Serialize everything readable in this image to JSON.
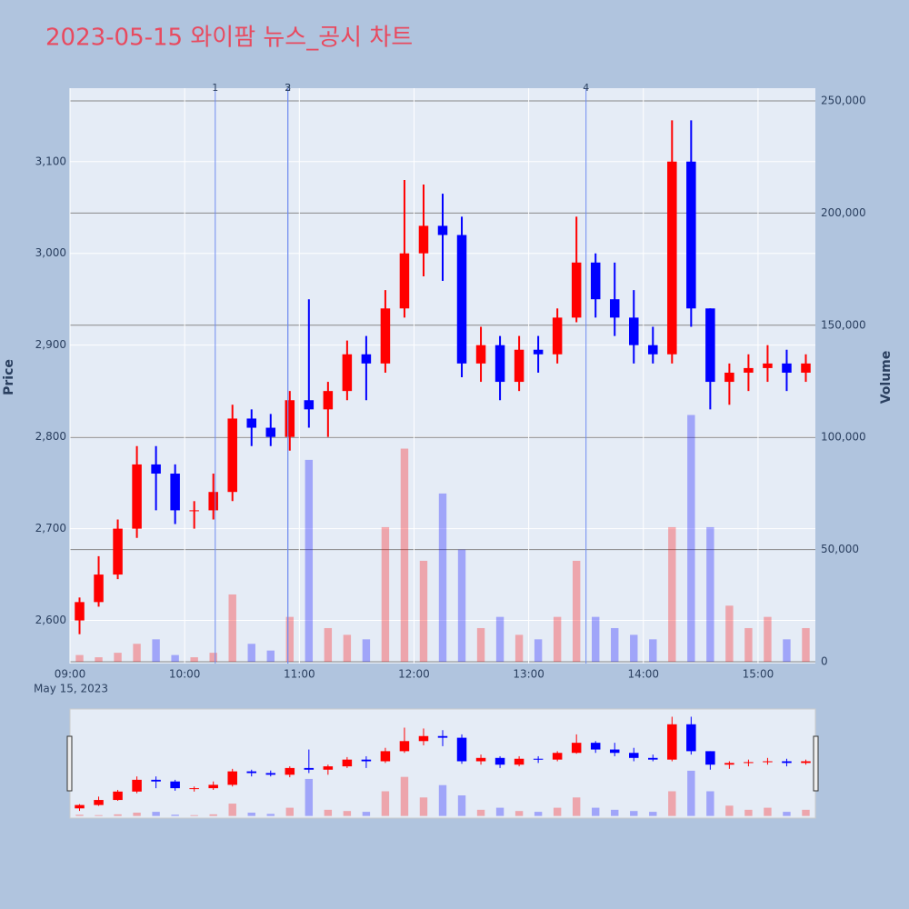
{
  "chart_data": {
    "type": "candlestick",
    "title": "2023-05-15 와이팜 뉴스_공시 차트",
    "date_label": "May 15, 2023",
    "y_title": "Price",
    "y2_title": "Volume",
    "increasing_color": "#ff0000",
    "decreasing_color": "#0000ff",
    "x": [
      "09:00",
      "09:10",
      "09:20",
      "09:30",
      "09:40",
      "09:50",
      "10:00",
      "10:10",
      "10:20",
      "10:30",
      "10:40",
      "10:50",
      "11:00",
      "11:10",
      "11:20",
      "11:30",
      "11:40",
      "11:50",
      "12:00",
      "12:10",
      "12:20",
      "12:30",
      "12:40",
      "12:50",
      "13:00",
      "13:10",
      "13:20",
      "13:30",
      "13:40",
      "13:50",
      "14:00",
      "14:10",
      "14:20",
      "14:30",
      "14:40",
      "14:50",
      "15:00",
      "15:10",
      "15:20"
    ],
    "open": [
      2600,
      2620,
      2650,
      2700,
      2770,
      2760,
      2720,
      2720,
      2740,
      2820,
      2810,
      2800,
      2840,
      2830,
      2850,
      2890,
      2880,
      2940,
      3000,
      3030,
      3020,
      2880,
      2900,
      2860,
      2895,
      2890,
      2930,
      2990,
      2950,
      2930,
      2900,
      2890,
      3100,
      2940,
      2860,
      2870,
      2875,
      2880,
      2870
    ],
    "high": [
      2625,
      2670,
      2710,
      2790,
      2790,
      2770,
      2730,
      2760,
      2835,
      2830,
      2825,
      2850,
      2950,
      2860,
      2905,
      2910,
      2960,
      3080,
      3075,
      3065,
      3040,
      2920,
      2910,
      2910,
      2910,
      2940,
      3040,
      3000,
      2990,
      2960,
      2920,
      3145,
      3145,
      2940,
      2880,
      2890,
      2900,
      2895,
      2890
    ],
    "low": [
      2585,
      2615,
      2645,
      2690,
      2720,
      2705,
      2700,
      2710,
      2730,
      2790,
      2790,
      2785,
      2810,
      2800,
      2840,
      2840,
      2870,
      2930,
      2975,
      2970,
      2865,
      2860,
      2840,
      2850,
      2870,
      2880,
      2925,
      2930,
      2910,
      2880,
      2880,
      2880,
      2920,
      2830,
      2835,
      2850,
      2860,
      2850,
      2860
    ],
    "close": [
      2620,
      2650,
      2700,
      2770,
      2760,
      2720,
      2720,
      2740,
      2820,
      2810,
      2800,
      2840,
      2830,
      2850,
      2890,
      2880,
      2940,
      3000,
      3030,
      3020,
      2880,
      2900,
      2860,
      2895,
      2890,
      2930,
      2990,
      2950,
      2930,
      2900,
      2890,
      3100,
      2940,
      2860,
      2870,
      2875,
      2880,
      2870,
      2880
    ],
    "volume": [
      3000,
      2000,
      4000,
      8000,
      10000,
      3000,
      2000,
      4000,
      30000,
      8000,
      5000,
      20000,
      90000,
      15000,
      12000,
      10000,
      60000,
      95000,
      45000,
      75000,
      50000,
      15000,
      20000,
      12000,
      10000,
      20000,
      45000,
      20000,
      15000,
      12000,
      10000,
      60000,
      110000,
      60000,
      25000,
      15000,
      20000,
      10000,
      15000
    ],
    "xlim": [
      "09:00",
      "15:30"
    ],
    "xticks": [
      "09:00",
      "10:00",
      "11:00",
      "12:00",
      "13:00",
      "14:00",
      "15:00"
    ],
    "ylim": [
      2553,
      3180
    ],
    "yticks": [
      {
        "value": 2600,
        "label": "2,600"
      },
      {
        "value": 2700,
        "label": "2,700"
      },
      {
        "value": 2800,
        "label": "2,800"
      },
      {
        "value": 2900,
        "label": "2,900"
      },
      {
        "value": 3000,
        "label": "3,000"
      },
      {
        "value": 3100,
        "label": "3,100"
      }
    ],
    "y2lim": [
      -810,
      255670
    ],
    "y2ticks": [
      0,
      {
        "value": 50000,
        "label": "50,000"
      },
      {
        "value": 100000,
        "label": "100,000"
      },
      {
        "value": 150000,
        "label": "150,000"
      },
      {
        "value": 200000,
        "label": "200,000"
      },
      {
        "value": 250000,
        "label": "250,000"
      }
    ],
    "events": [
      {
        "x": "10:16",
        "label": "1"
      },
      {
        "x": "10:54",
        "label": "2"
      },
      {
        "x": "10:54",
        "label": "3"
      },
      {
        "x": "13:30",
        "label": "4"
      }
    ]
  }
}
